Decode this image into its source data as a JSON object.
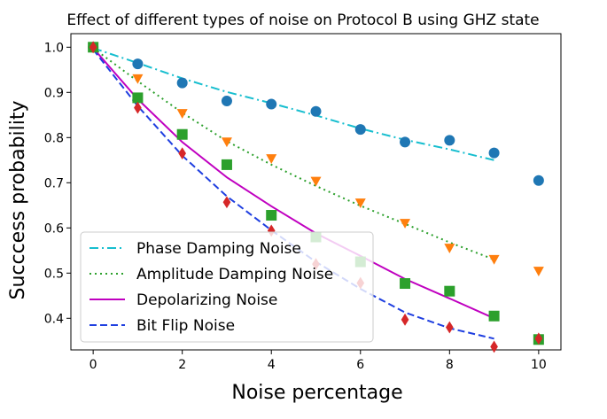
{
  "chart_data": {
    "type": "scatter",
    "title": "Effect of different types of noise on Protocol B using GHZ state",
    "xlabel": "Noise percentage",
    "ylabel": "Succcess probability",
    "xlim": [
      -0.5,
      10.5
    ],
    "ylim": [
      0.33,
      1.03
    ],
    "xticks": [
      0,
      2,
      4,
      6,
      8,
      10
    ],
    "yticks": [
      0.4,
      0.5,
      0.6,
      0.7,
      0.8,
      0.9,
      1.0
    ],
    "xtick_labels": [
      "0",
      "2",
      "4",
      "6",
      "8",
      "10"
    ],
    "ytick_labels": [
      "0.4",
      "0.5",
      "0.6",
      "0.7",
      "0.8",
      "0.9",
      "1.0"
    ],
    "legend_position": "lower-left",
    "series": [
      {
        "name": "Phase Damping Noise",
        "color": "#1f77b4",
        "line_color": "#17becf",
        "marker": "circle",
        "line_style": "dashdot",
        "x": [
          0,
          1,
          2,
          3,
          4,
          5,
          6,
          7,
          8,
          9,
          10
        ],
        "points": [
          1.0,
          0.963,
          0.921,
          0.881,
          0.874,
          0.858,
          0.818,
          0.79,
          0.794,
          0.766,
          0.705
        ],
        "fit_x": [
          0,
          1,
          2,
          3,
          4,
          5,
          6,
          7,
          8,
          9
        ],
        "fit": [
          0.998,
          0.965,
          0.931,
          0.901,
          0.876,
          0.849,
          0.82,
          0.795,
          0.774,
          0.75
        ]
      },
      {
        "name": "Amplitude Damping Noise",
        "color": "#ff7f0e",
        "line_color": "#2ca02c",
        "marker": "triangle-down",
        "line_style": "dotted",
        "x": [
          0,
          1,
          2,
          3,
          4,
          5,
          6,
          7,
          8,
          9,
          10
        ],
        "points": [
          1.0,
          0.93,
          0.853,
          0.79,
          0.753,
          0.703,
          0.655,
          0.61,
          0.555,
          0.53,
          0.504
        ],
        "fit_x": [
          0,
          1,
          2,
          3,
          4,
          5,
          6,
          7,
          8,
          9
        ],
        "fit": [
          0.998,
          0.925,
          0.855,
          0.792,
          0.74,
          0.693,
          0.649,
          0.609,
          0.568,
          0.53
        ]
      },
      {
        "name": "Depolarizing Noise",
        "color": "#2ca02c",
        "line_color": "#c000c0",
        "marker": "square",
        "line_style": "solid",
        "x": [
          0,
          1,
          2,
          3,
          4,
          5,
          6,
          7,
          8,
          9,
          10
        ],
        "points": [
          1.0,
          0.888,
          0.807,
          0.74,
          0.628,
          0.58,
          0.525,
          0.477,
          0.46,
          0.405,
          0.353
        ],
        "fit_x": [
          0,
          1,
          2,
          3,
          4,
          5,
          6,
          7,
          8,
          9
        ],
        "fit": [
          0.998,
          0.885,
          0.79,
          0.712,
          0.648,
          0.588,
          0.538,
          0.487,
          0.444,
          0.4
        ]
      },
      {
        "name": "Bit Flip Noise",
        "color": "#d62728",
        "line_color": "#1f3fe0",
        "marker": "diamond",
        "line_style": "dashed",
        "x": [
          0,
          1,
          2,
          3,
          4,
          5,
          6,
          7,
          8,
          9,
          10
        ],
        "points": [
          1.0,
          0.866,
          0.765,
          0.657,
          0.594,
          0.52,
          0.478,
          0.397,
          0.38,
          0.337,
          0.355
        ],
        "fit_x": [
          0,
          1,
          2,
          3,
          4,
          5,
          6,
          7,
          8,
          9
        ],
        "fit": [
          0.995,
          0.87,
          0.76,
          0.67,
          0.595,
          0.525,
          0.465,
          0.413,
          0.378,
          0.355
        ]
      }
    ]
  }
}
